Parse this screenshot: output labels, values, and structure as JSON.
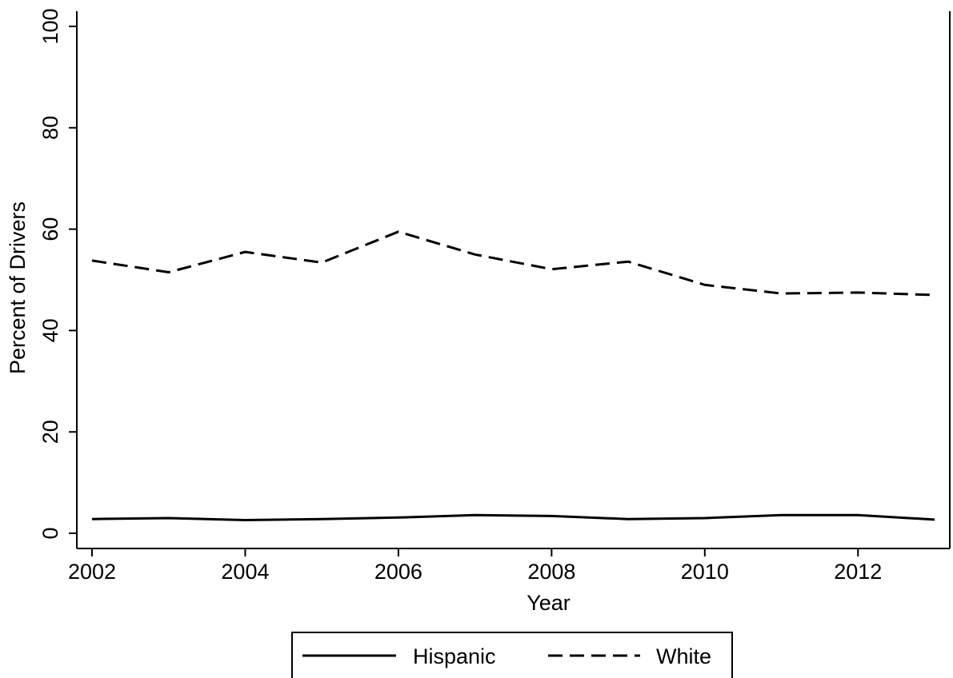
{
  "chart_data": {
    "type": "line",
    "title": "",
    "xlabel": "Year",
    "ylabel": "Percent of Drivers",
    "x": [
      2002,
      2003,
      2004,
      2005,
      2006,
      2007,
      2008,
      2009,
      2010,
      2011,
      2012,
      2013
    ],
    "xlim": [
      2002,
      2013
    ],
    "xticks": [
      2002,
      2004,
      2006,
      2008,
      2010,
      2012
    ],
    "ylim": [
      0,
      100
    ],
    "yticks": [
      0,
      20,
      40,
      60,
      80,
      100
    ],
    "grid": false,
    "legend_position": "bottom",
    "series": [
      {
        "name": "Hispanic",
        "line_style": "solid",
        "color": "#000000",
        "values": [
          2.8,
          3.0,
          2.6,
          2.8,
          3.1,
          3.6,
          3.4,
          2.8,
          3.0,
          3.6,
          3.6,
          2.7
        ]
      },
      {
        "name": "White",
        "line_style": "dashed",
        "color": "#000000",
        "values": [
          53.8,
          51.5,
          55.5,
          53.4,
          59.5,
          55.0,
          52.1,
          53.6,
          49.0,
          47.3,
          47.5,
          47.0
        ]
      }
    ]
  }
}
